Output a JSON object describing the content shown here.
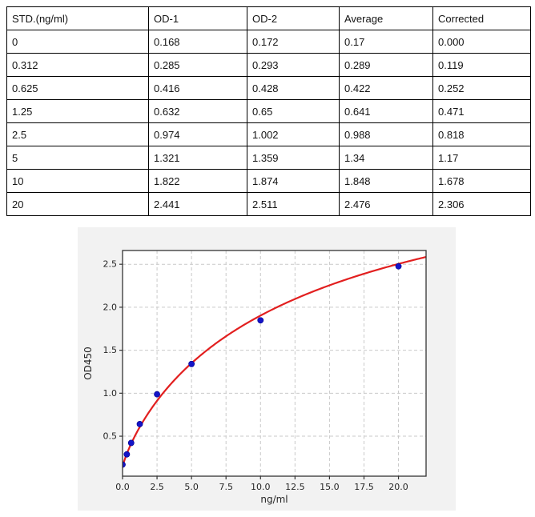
{
  "table": {
    "columns": [
      "STD.(ng/ml)",
      "OD-1",
      "OD-2",
      "Average",
      "Corrected"
    ],
    "rows": [
      [
        "0",
        "0.168",
        "0.172",
        "0.17",
        "0.000"
      ],
      [
        "0.312",
        "0.285",
        "0.293",
        "0.289",
        "0.119"
      ],
      [
        "0.625",
        "0.416",
        "0.428",
        "0.422",
        "0.252"
      ],
      [
        "1.25",
        "0.632",
        "0.65",
        "0.641",
        "0.471"
      ],
      [
        "2.5",
        "0.974",
        "1.002",
        "0.988",
        "0.818"
      ],
      [
        "5",
        "1.321",
        "1.359",
        "1.34",
        "1.17"
      ],
      [
        "10",
        "1.822",
        "1.874",
        "1.848",
        "1.678"
      ],
      [
        "20",
        "2.441",
        "2.511",
        "2.476",
        "2.306"
      ]
    ]
  },
  "chart_data": {
    "type": "scatter",
    "title": "",
    "xlabel": "ng/ml",
    "ylabel": "OD450",
    "xlim": [
      0,
      22
    ],
    "ylim": [
      0.035,
      2.66
    ],
    "x_ticks": [
      0,
      2.5,
      5,
      7.5,
      10,
      12.5,
      15,
      17.5,
      20
    ],
    "x_tick_labels": [
      "0.0",
      "2.5",
      "5.0",
      "7.5",
      "10.0",
      "12.5",
      "15.0",
      "17.5",
      "20.0"
    ],
    "y_ticks": [
      0.5,
      1.0,
      1.5,
      2.0,
      2.5
    ],
    "y_tick_labels": [
      "0.5",
      "1.0",
      "1.5",
      "2.0",
      "2.5"
    ],
    "grid": {
      "visible": true,
      "style": "dashed"
    },
    "legend": null,
    "series": [
      {
        "name": "standard-points",
        "type": "scatter",
        "color": "#1414c8",
        "edge_color": "#00008b",
        "x": [
          0,
          0.312,
          0.625,
          1.25,
          2.5,
          5,
          10,
          20
        ],
        "y": [
          0.17,
          0.289,
          0.422,
          0.641,
          0.988,
          1.34,
          1.848,
          2.476
        ]
      },
      {
        "name": "fit-curve",
        "type": "line",
        "color": "#e21f1f",
        "model": "4PL",
        "params": {
          "a": 0.14,
          "b": 0.85,
          "c": 14.0,
          "d": 4.25
        },
        "x_range": [
          0,
          22
        ]
      }
    ],
    "colors": {
      "figure_bg": "#f2f2f2",
      "plot_bg": "#ffffff",
      "grid": "#c9c9c9",
      "spine": "#333333"
    }
  }
}
